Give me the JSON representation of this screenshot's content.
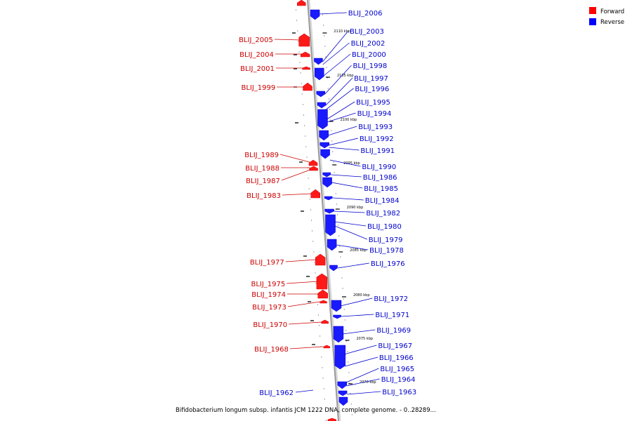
{
  "legend": [
    {
      "label": "Forward",
      "color": "#ff0000"
    },
    {
      "label": "Reverse",
      "color": "#0000ff"
    }
  ],
  "caption": "Bifidobacterium longum subsp. infantis JCM 1222 DNA, complete genome. - 0..28289...",
  "scale_labels": [
    "2110 kbp",
    "2105 kbp",
    "2100 kbp",
    "2095 kbp",
    "2090 kbp",
    "2085 kbp",
    "2080 kbp",
    "2075 kbp",
    "2070 kbp"
  ],
  "forward_genes": [
    "BLIJ_2005",
    "BLIJ_2004",
    "BLIJ_2001",
    "BLIJ_1999",
    "BLIJ_1989",
    "BLIJ_1988",
    "BLIJ_1987",
    "BLIJ_1983",
    "BLIJ_1977",
    "BLIJ_1975",
    "BLIJ_1974",
    "BLIJ_1973",
    "BLIJ_1970",
    "BLIJ_1968"
  ],
  "reverse_genes": [
    "BLIJ_2006",
    "BLIJ_2003",
    "BLIJ_2002",
    "BLIJ_2000",
    "BLIJ_1998",
    "BLIJ_1997",
    "BLIJ_1996",
    "BLIJ_1995",
    "BLIJ_1994",
    "BLIJ_1993",
    "BLIJ_1992",
    "BLIJ_1991",
    "BLIJ_1990",
    "BLIJ_1986",
    "BLIJ_1985",
    "BLIJ_1984",
    "BLIJ_1982",
    "BLIJ_1980",
    "BLIJ_1979",
    "BLIJ_1978",
    "BLIJ_1976",
    "BLIJ_1972",
    "BLIJ_1971",
    "BLIJ_1969",
    "BLIJ_1967",
    "BLIJ_1966",
    "BLIJ_1965",
    "BLIJ_1964",
    "BLIJ_1963",
    "BLIJ_1962"
  ]
}
